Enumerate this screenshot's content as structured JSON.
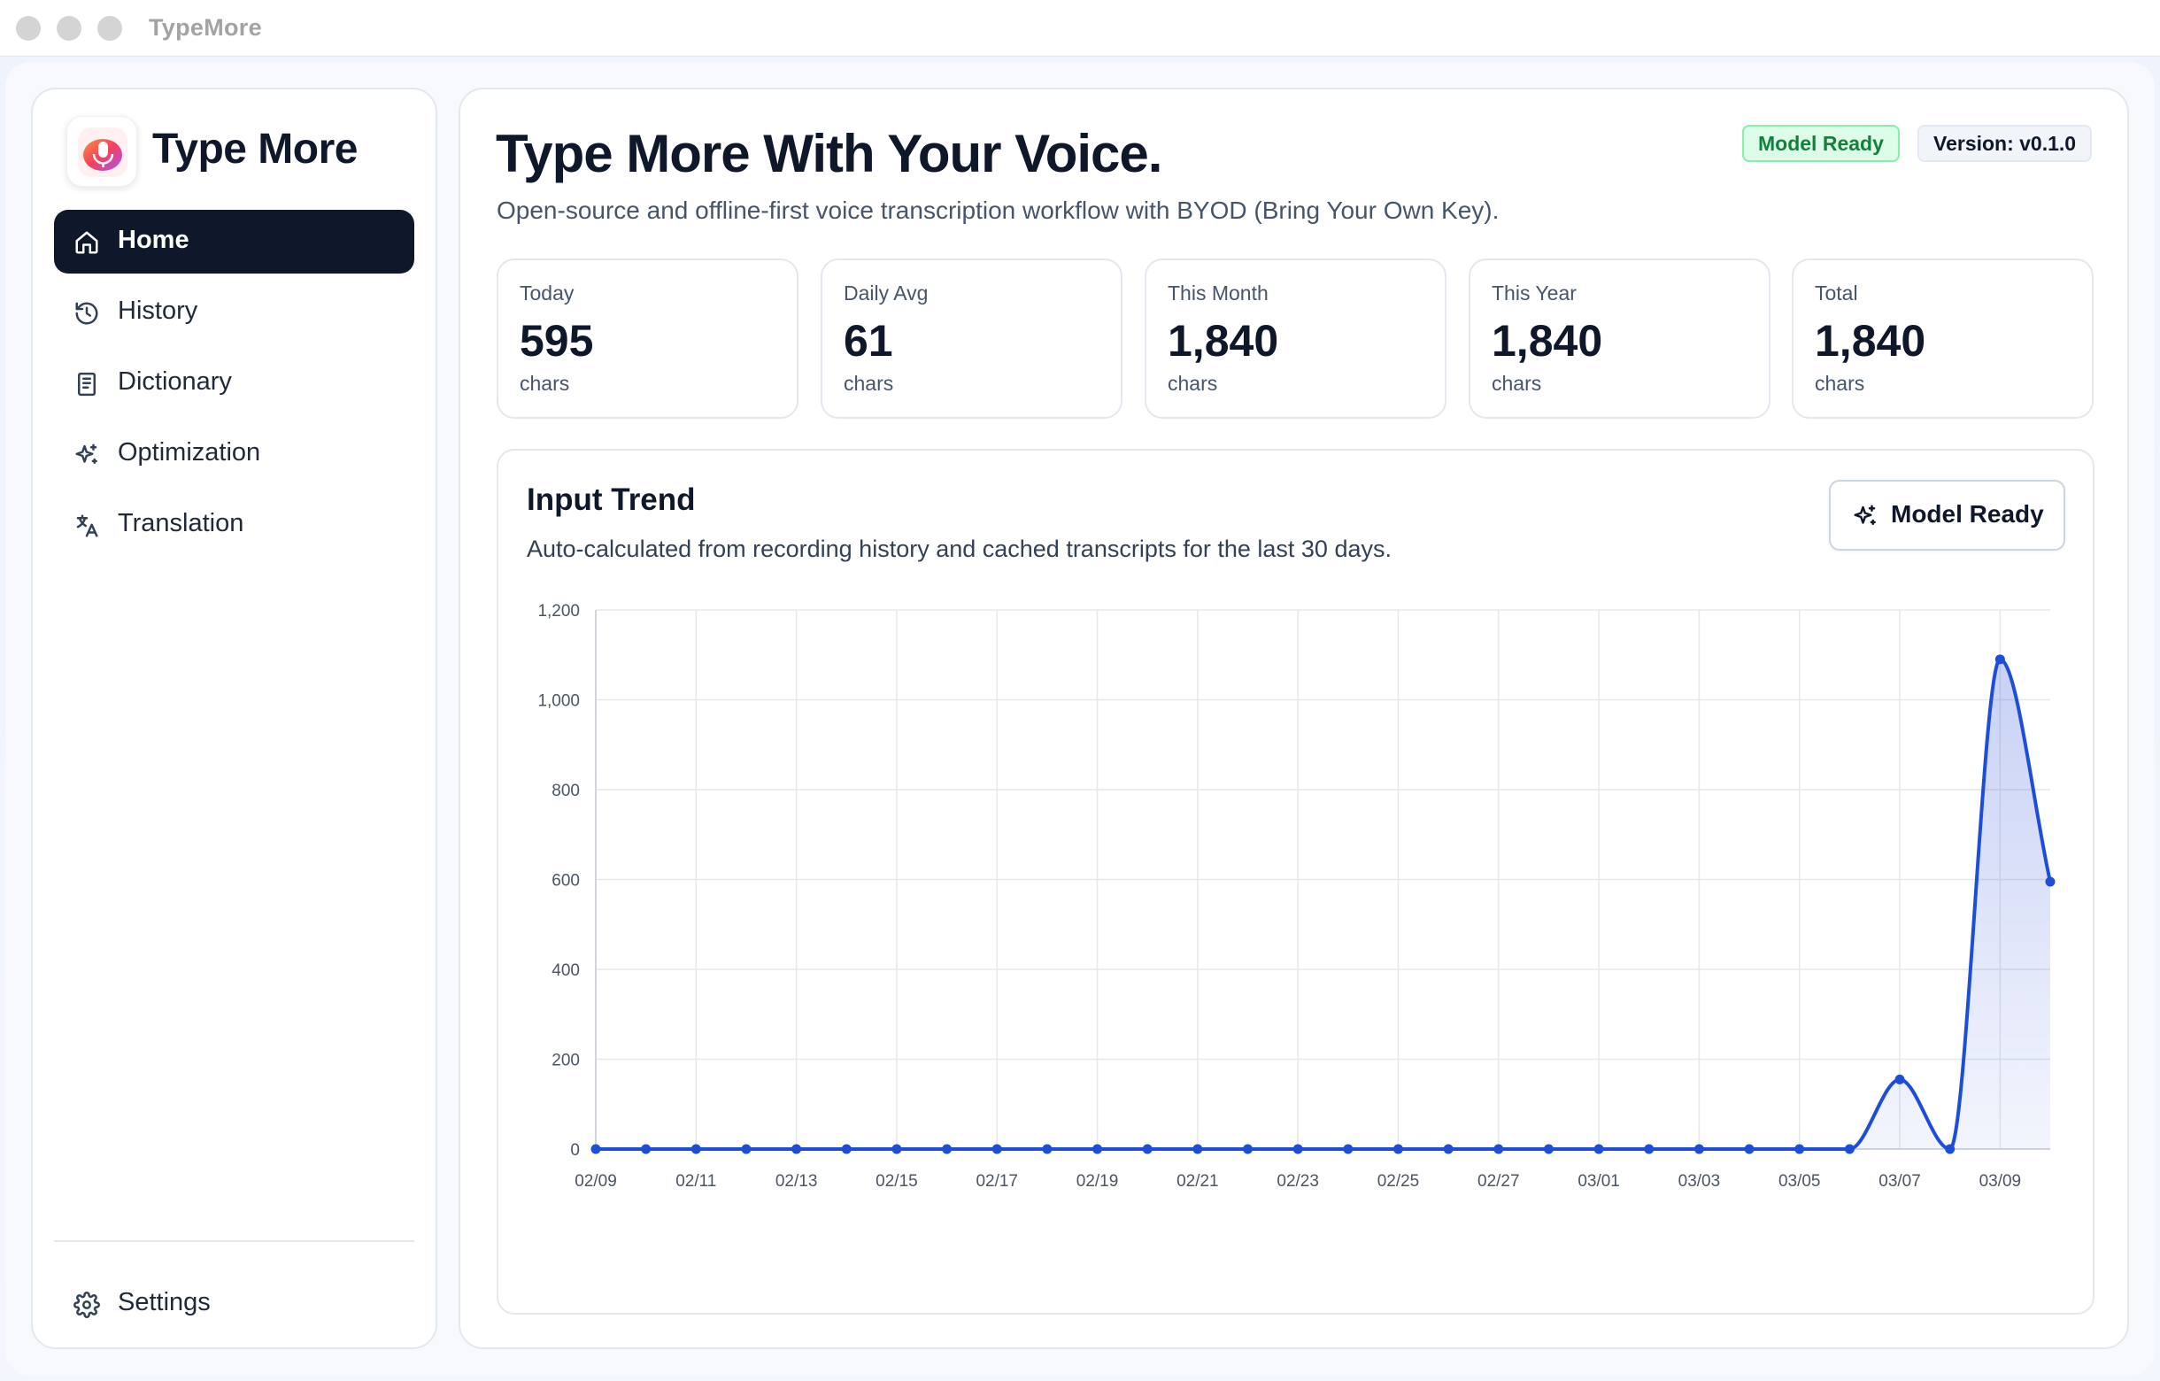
{
  "window": {
    "title": "TypeMore"
  },
  "sidebar": {
    "app_name": "Type More",
    "items": [
      {
        "label": "Home",
        "icon": "home-icon",
        "active": true
      },
      {
        "label": "History",
        "icon": "history-icon",
        "active": false
      },
      {
        "label": "Dictionary",
        "icon": "book-icon",
        "active": false
      },
      {
        "label": "Optimization",
        "icon": "sparkles-icon",
        "active": false
      },
      {
        "label": "Translation",
        "icon": "translate-icon",
        "active": false
      }
    ],
    "settings": {
      "label": "Settings",
      "icon": "gear-icon"
    }
  },
  "header": {
    "title": "Type More With Your Voice.",
    "subtitle": "Open-source and offline-first voice transcription workflow with BYOD (Bring Your Own Key).",
    "status_badge": "Model Ready",
    "version_badge": "Version: v0.1.0"
  },
  "stats": [
    {
      "label": "Today",
      "value": "595",
      "unit": "chars"
    },
    {
      "label": "Daily Avg",
      "value": "61",
      "unit": "chars"
    },
    {
      "label": "This Month",
      "value": "1,840",
      "unit": "chars"
    },
    {
      "label": "This Year",
      "value": "1,840",
      "unit": "chars"
    },
    {
      "label": "Total",
      "value": "1,840",
      "unit": "chars"
    }
  ],
  "trend": {
    "title": "Input Trend",
    "description": "Auto-calculated from recording history and cached transcripts for the last 30 days.",
    "button_label": "Model Ready"
  },
  "colors": {
    "accent": "#1d4ed8",
    "success": "#15803d",
    "dark": "#0f172a"
  },
  "chart_data": {
    "type": "area",
    "x": [
      "02/09",
      "02/10",
      "02/11",
      "02/12",
      "02/13",
      "02/14",
      "02/15",
      "02/16",
      "02/17",
      "02/18",
      "02/19",
      "02/20",
      "02/21",
      "02/22",
      "02/23",
      "02/24",
      "02/25",
      "02/26",
      "02/27",
      "02/28",
      "03/01",
      "03/02",
      "03/03",
      "03/04",
      "03/05",
      "03/06",
      "03/07",
      "03/08",
      "03/09",
      "03/10"
    ],
    "x_tick_labels": [
      "02/09",
      "02/11",
      "02/13",
      "02/15",
      "02/17",
      "02/19",
      "02/21",
      "02/23",
      "02/25",
      "02/27",
      "03/01",
      "03/03",
      "03/05",
      "03/07",
      "03/09"
    ],
    "series": [
      {
        "values": [
          0,
          0,
          0,
          0,
          0,
          0,
          0,
          0,
          0,
          0,
          0,
          0,
          0,
          0,
          0,
          0,
          0,
          0,
          0,
          0,
          0,
          0,
          0,
          0,
          0,
          0,
          155,
          0,
          1090,
          595
        ]
      }
    ],
    "y_ticks": [
      0,
      200,
      400,
      600,
      800,
      1000,
      1200
    ],
    "y_tick_labels": [
      "0",
      "200",
      "400",
      "600",
      "800",
      "1,000",
      "1,200"
    ],
    "ylim": [
      0,
      1200
    ],
    "grid": true,
    "title": "",
    "xlabel": "",
    "ylabel": ""
  }
}
